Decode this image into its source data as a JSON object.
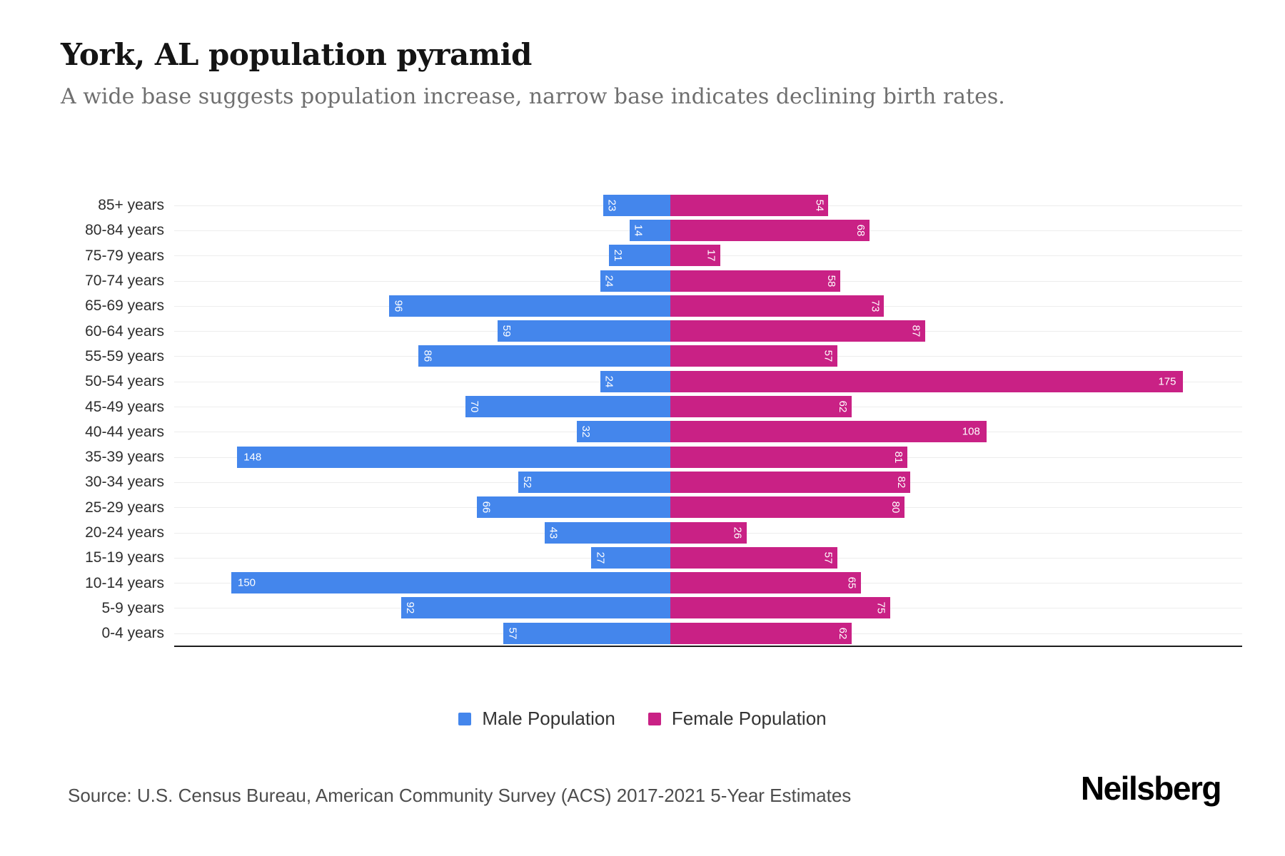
{
  "header": {
    "title": "York, AL population pyramid",
    "subtitle": "A wide base suggests population increase, narrow base indicates declining birth rates."
  },
  "chart_data": {
    "type": "bar",
    "variant": "population_pyramid",
    "title": "York, AL population pyramid",
    "subtitle": "A wide base suggests population increase, narrow base indicates declining birth rates.",
    "categories": [
      "85+ years",
      "80-84 years",
      "75-79 years",
      "70-74 years",
      "65-69 years",
      "60-64 years",
      "55-59 years",
      "50-54 years",
      "45-49 years",
      "40-44 years",
      "35-39 years",
      "30-34 years",
      "25-29 years",
      "20-24 years",
      "15-19 years",
      "10-14 years",
      "5-9 years",
      "0-4 years"
    ],
    "series": [
      {
        "name": "Male Population",
        "side": "left",
        "color": "#4486EC",
        "values": [
          23,
          14,
          21,
          24,
          96,
          59,
          86,
          24,
          70,
          32,
          148,
          52,
          66,
          43,
          27,
          150,
          92,
          57
        ]
      },
      {
        "name": "Female Population",
        "side": "right",
        "color": "#C92185",
        "values": [
          54,
          68,
          17,
          58,
          73,
          87,
          57,
          175,
          62,
          108,
          81,
          82,
          80,
          26,
          57,
          65,
          75,
          62
        ]
      }
    ],
    "value_labels": "inside_bar_ends",
    "axis_max_per_side": 180,
    "grid": true,
    "legend_position": "bottom"
  },
  "footer": {
    "source": "Source: U.S. Census Bureau, American Community Survey (ACS) 2017-2021 5-Year Estimates",
    "brand": "Neilsberg"
  }
}
